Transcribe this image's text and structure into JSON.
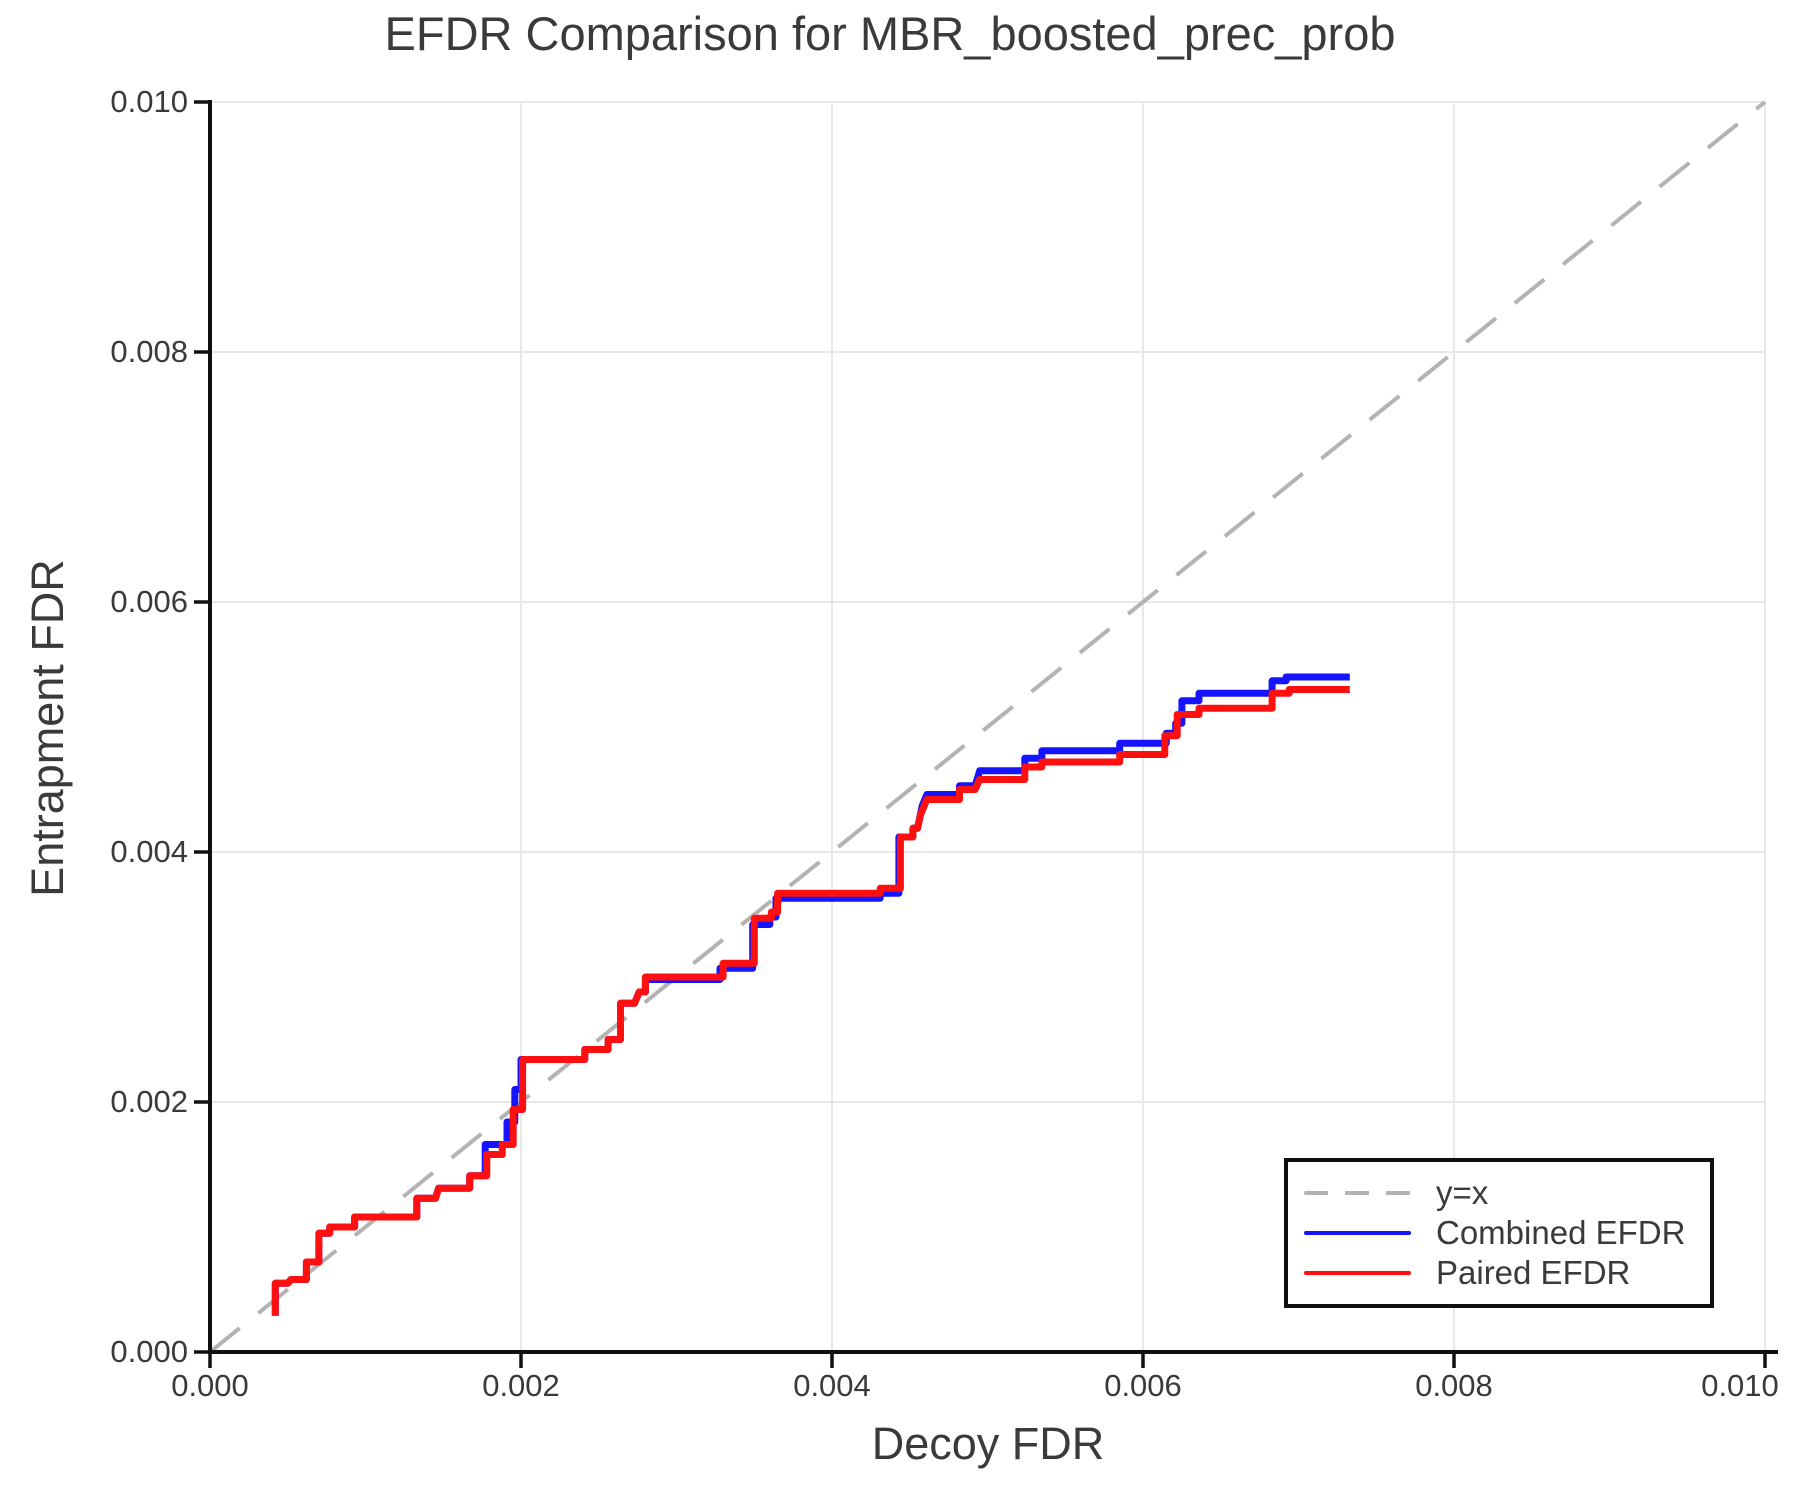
{
  "title": "EFDR Comparison for MBR_boosted_prec_prob",
  "axes": {
    "xlabel": "Decoy FDR",
    "ylabel": "Entrapment FDR",
    "x_ticks": [
      "0.000",
      "0.002",
      "0.004",
      "0.006",
      "0.008",
      "0.010"
    ],
    "y_ticks": [
      "0.000",
      "0.002",
      "0.004",
      "0.006",
      "0.008",
      "0.010"
    ]
  },
  "legend": {
    "entries": [
      {
        "label": "y=x",
        "color": "#b3b3b3",
        "dashed": true
      },
      {
        "label": "Combined EFDR",
        "color": "#1414ff",
        "dashed": false
      },
      {
        "label": "Paired EFDR",
        "color": "#ff1010",
        "dashed": false
      }
    ]
  },
  "colors": {
    "grid": "#e8e8e8",
    "spine": "#111111",
    "reference": "#b3b3b3",
    "combined": "#1414ff",
    "paired": "#ff1010",
    "text": "#3a3a3a"
  },
  "chart_data": {
    "type": "line",
    "title": "EFDR Comparison for MBR_boosted_prec_prob",
    "xlabel": "Decoy FDR",
    "ylabel": "Entrapment FDR",
    "xlim": [
      0,
      0.01
    ],
    "ylim": [
      0,
      0.01
    ],
    "grid": true,
    "legend_position": "lower right",
    "reference_line": {
      "label": "y=x",
      "from": [
        0,
        0
      ],
      "to": [
        0.01,
        0.01
      ],
      "style": "dashed",
      "color": "#b3b3b3"
    },
    "series": [
      {
        "name": "Combined EFDR",
        "color": "#1414ff",
        "points": [
          [
            0.00042,
            0.00029
          ],
          [
            0.00042,
            0.00055
          ],
          [
            0.0005,
            0.00055
          ],
          [
            0.00052,
            0.00058
          ],
          [
            0.00062,
            0.00058
          ],
          [
            0.00062,
            0.00072
          ],
          [
            0.0007,
            0.00072
          ],
          [
            0.0007,
            0.00095
          ],
          [
            0.00077,
            0.00095
          ],
          [
            0.00077,
            0.001
          ],
          [
            0.00093,
            0.001
          ],
          [
            0.00093,
            0.00108
          ],
          [
            0.00133,
            0.00108
          ],
          [
            0.00133,
            0.00123
          ],
          [
            0.00145,
            0.00123
          ],
          [
            0.00147,
            0.00131
          ],
          [
            0.00167,
            0.00131
          ],
          [
            0.00167,
            0.00141
          ],
          [
            0.00177,
            0.00141
          ],
          [
            0.00177,
            0.00166
          ],
          [
            0.00191,
            0.00166
          ],
          [
            0.00191,
            0.00184
          ],
          [
            0.00196,
            0.00184
          ],
          [
            0.00196,
            0.0021
          ],
          [
            0.002,
            0.0021
          ],
          [
            0.002,
            0.00234
          ],
          [
            0.00241,
            0.00234
          ],
          [
            0.00241,
            0.00242
          ],
          [
            0.00256,
            0.00242
          ],
          [
            0.00256,
            0.0025
          ],
          [
            0.00264,
            0.0025
          ],
          [
            0.00264,
            0.00279
          ],
          [
            0.00273,
            0.00279
          ],
          [
            0.00276,
            0.00288
          ],
          [
            0.0028,
            0.00288
          ],
          [
            0.0028,
            0.00298
          ],
          [
            0.00328,
            0.00298
          ],
          [
            0.00328,
            0.00307
          ],
          [
            0.00349,
            0.00307
          ],
          [
            0.00349,
            0.00342
          ],
          [
            0.0036,
            0.00342
          ],
          [
            0.0036,
            0.00348
          ],
          [
            0.00364,
            0.00348
          ],
          [
            0.00364,
            0.00363
          ],
          [
            0.00431,
            0.00363
          ],
          [
            0.00431,
            0.00367
          ],
          [
            0.00443,
            0.00367
          ],
          [
            0.00443,
            0.00412
          ],
          [
            0.00452,
            0.00412
          ],
          [
            0.00452,
            0.00419
          ],
          [
            0.00455,
            0.00419
          ],
          [
            0.00458,
            0.00437
          ],
          [
            0.00461,
            0.00446
          ],
          [
            0.00482,
            0.00446
          ],
          [
            0.00482,
            0.00453
          ],
          [
            0.00492,
            0.00453
          ],
          [
            0.00495,
            0.00465
          ],
          [
            0.00524,
            0.00465
          ],
          [
            0.00524,
            0.00475
          ],
          [
            0.00535,
            0.00475
          ],
          [
            0.00535,
            0.00481
          ],
          [
            0.00585,
            0.00481
          ],
          [
            0.00585,
            0.00487
          ],
          [
            0.00615,
            0.00487
          ],
          [
            0.00615,
            0.00495
          ],
          [
            0.00621,
            0.00495
          ],
          [
            0.00621,
            0.00503
          ],
          [
            0.00625,
            0.00503
          ],
          [
            0.00625,
            0.00521
          ],
          [
            0.00636,
            0.00521
          ],
          [
            0.00636,
            0.00527
          ],
          [
            0.00683,
            0.00527
          ],
          [
            0.00683,
            0.00537
          ],
          [
            0.00692,
            0.00537
          ],
          [
            0.00692,
            0.0054
          ],
          [
            0.00733,
            0.0054
          ]
        ]
      },
      {
        "name": "Paired EFDR",
        "color": "#ff1010",
        "points": [
          [
            0.00042,
            0.00029
          ],
          [
            0.00042,
            0.00055
          ],
          [
            0.0005,
            0.00055
          ],
          [
            0.00052,
            0.00058
          ],
          [
            0.00062,
            0.00058
          ],
          [
            0.00062,
            0.00072
          ],
          [
            0.0007,
            0.00072
          ],
          [
            0.0007,
            0.00095
          ],
          [
            0.00077,
            0.00095
          ],
          [
            0.00077,
            0.001
          ],
          [
            0.00093,
            0.001
          ],
          [
            0.00093,
            0.00108
          ],
          [
            0.00133,
            0.00108
          ],
          [
            0.00133,
            0.00123
          ],
          [
            0.00145,
            0.00123
          ],
          [
            0.00147,
            0.00131
          ],
          [
            0.00167,
            0.00131
          ],
          [
            0.00167,
            0.00141
          ],
          [
            0.00178,
            0.00141
          ],
          [
            0.00178,
            0.00158
          ],
          [
            0.00188,
            0.00158
          ],
          [
            0.00188,
            0.00166
          ],
          [
            0.00195,
            0.00166
          ],
          [
            0.00195,
            0.00194
          ],
          [
            0.00201,
            0.00194
          ],
          [
            0.00201,
            0.00234
          ],
          [
            0.00241,
            0.00234
          ],
          [
            0.00241,
            0.00242
          ],
          [
            0.00256,
            0.00242
          ],
          [
            0.00256,
            0.0025
          ],
          [
            0.00264,
            0.0025
          ],
          [
            0.00264,
            0.00279
          ],
          [
            0.00273,
            0.00279
          ],
          [
            0.00276,
            0.00288
          ],
          [
            0.0028,
            0.00288
          ],
          [
            0.0028,
            0.003
          ],
          [
            0.0033,
            0.003
          ],
          [
            0.0033,
            0.00311
          ],
          [
            0.0035,
            0.00311
          ],
          [
            0.0035,
            0.00347
          ],
          [
            0.00361,
            0.00347
          ],
          [
            0.00361,
            0.00352
          ],
          [
            0.00365,
            0.00352
          ],
          [
            0.00365,
            0.00367
          ],
          [
            0.00431,
            0.00367
          ],
          [
            0.00431,
            0.00371
          ],
          [
            0.00444,
            0.00371
          ],
          [
            0.00444,
            0.00412
          ],
          [
            0.00452,
            0.00412
          ],
          [
            0.00452,
            0.00419
          ],
          [
            0.00455,
            0.00419
          ],
          [
            0.00457,
            0.0043
          ],
          [
            0.00461,
            0.00442
          ],
          [
            0.00482,
            0.00442
          ],
          [
            0.00482,
            0.0045
          ],
          [
            0.00492,
            0.0045
          ],
          [
            0.00495,
            0.00458
          ],
          [
            0.00524,
            0.00458
          ],
          [
            0.00524,
            0.00468
          ],
          [
            0.00535,
            0.00468
          ],
          [
            0.00535,
            0.00472
          ],
          [
            0.00585,
            0.00472
          ],
          [
            0.00585,
            0.00478
          ],
          [
            0.00614,
            0.00478
          ],
          [
            0.00614,
            0.00493
          ],
          [
            0.00622,
            0.00493
          ],
          [
            0.00622,
            0.0051
          ],
          [
            0.00636,
            0.0051
          ],
          [
            0.00636,
            0.00515
          ],
          [
            0.00683,
            0.00515
          ],
          [
            0.00683,
            0.00527
          ],
          [
            0.00694,
            0.00527
          ],
          [
            0.00694,
            0.0053
          ],
          [
            0.00733,
            0.0053
          ]
        ]
      }
    ]
  }
}
